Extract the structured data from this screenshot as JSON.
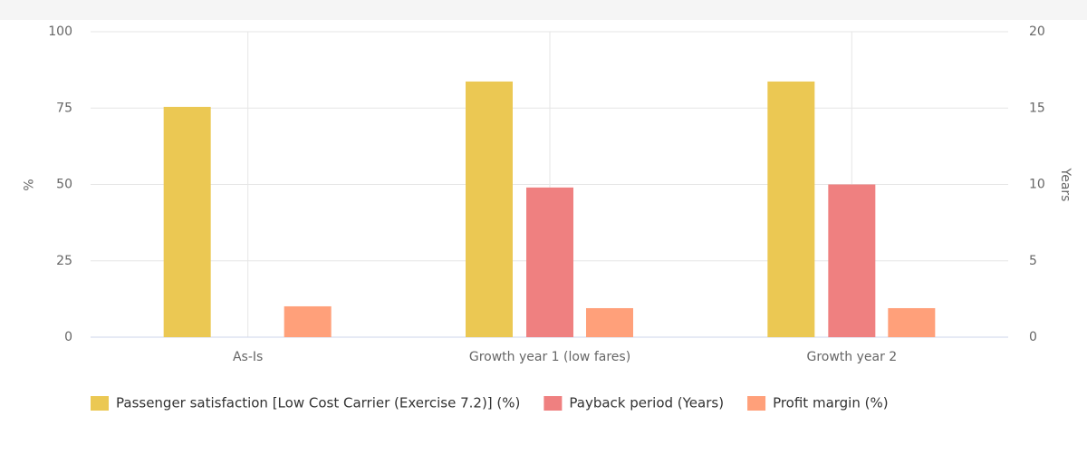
{
  "chart_data": {
    "type": "bar",
    "categories": [
      "As-Is",
      "Growth year 1 (low fares)",
      "Growth year 2"
    ],
    "series": [
      {
        "name": "Passenger satisfaction [Low Cost Carrier (Exercise 7.2)] (%)",
        "color": "#ebc853",
        "values": [
          75.4,
          83.7,
          83.7
        ]
      },
      {
        "name": "Payback period (Years)",
        "color": "#ef8080",
        "axis": "y2",
        "values": [
          null,
          9.8,
          10.0
        ]
      },
      {
        "name": "Profit margin (%)",
        "color": "#ffa07a",
        "values": [
          10.1,
          9.5,
          9.5
        ]
      }
    ],
    "y_label": "%",
    "y2_label": "Years",
    "ylim": [
      0,
      100
    ],
    "yticks": [
      0,
      25,
      50,
      75,
      100
    ],
    "y2lim": [
      0,
      20
    ],
    "y2ticks": [
      0,
      5,
      10,
      15,
      20
    ],
    "grid": true,
    "legend": "bottom"
  }
}
